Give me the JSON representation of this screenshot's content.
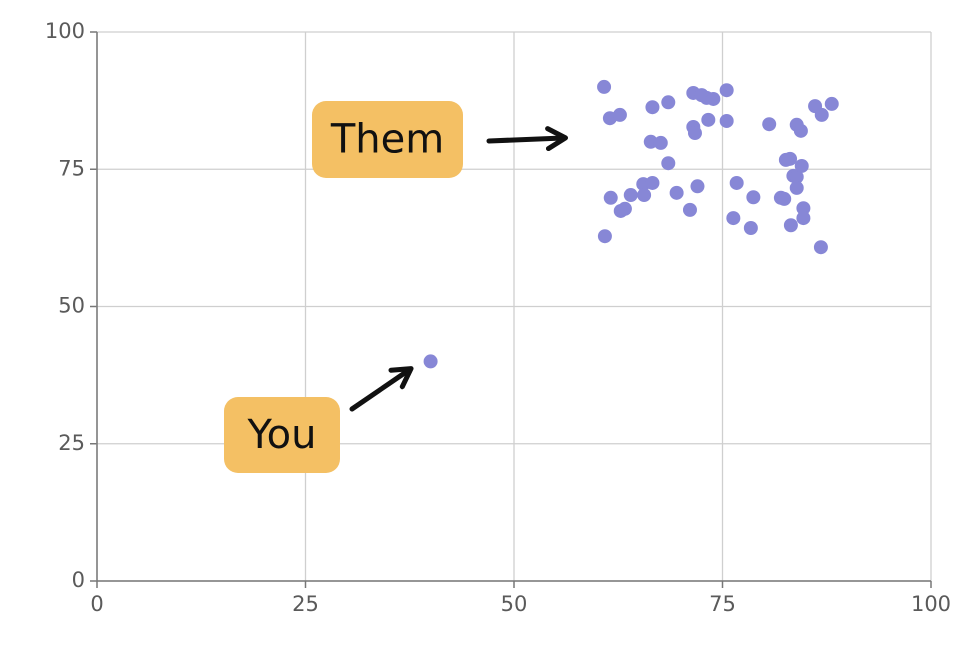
{
  "chart_data": {
    "type": "scatter",
    "series": [
      {
        "name": "You",
        "color": "#8787d6",
        "x": [
          40
        ],
        "values": [
          40
        ]
      },
      {
        "name": "Them",
        "color": "#8787d6",
        "x": [
          60.8,
          61.5,
          62.7,
          61.6,
          60.9,
          62.8,
          63.3,
          64.0,
          65.5,
          65.6,
          66.6,
          66.6,
          66.4,
          67.6,
          68.5,
          68.5,
          69.5,
          71.1,
          71.5,
          71.5,
          71.7,
          72.0,
          72.5,
          73.1,
          73.9,
          73.3,
          75.5,
          75.5,
          76.3,
          76.7,
          78.4,
          78.7,
          80.6,
          82.0,
          82.4,
          82.6,
          83.1,
          83.2,
          83.5,
          83.9,
          83.9,
          84.4,
          83.9,
          84.5,
          84.7,
          84.7,
          86.1,
          86.9,
          88.1,
          86.8
        ],
        "values": [
          90.0,
          84.3,
          84.9,
          69.8,
          62.8,
          67.4,
          67.8,
          70.3,
          72.3,
          70.3,
          72.5,
          86.3,
          80.0,
          79.8,
          87.2,
          76.1,
          70.7,
          67.6,
          88.9,
          82.7,
          81.6,
          71.9,
          88.5,
          88.0,
          87.8,
          84.0,
          89.4,
          83.8,
          66.1,
          72.5,
          64.3,
          69.9,
          83.2,
          69.8,
          69.6,
          76.7,
          76.9,
          64.8,
          73.8,
          73.6,
          83.1,
          82.0,
          71.6,
          75.6,
          67.9,
          66.1,
          86.5,
          84.9,
          86.9,
          60.8
        ]
      }
    ],
    "xlim": [
      0,
      100
    ],
    "xticks": [
      0,
      25,
      50,
      75,
      100
    ],
    "ylim": [
      0,
      100
    ],
    "yticks": [
      0,
      25,
      50,
      75,
      100
    ],
    "grid": true
  }
}
